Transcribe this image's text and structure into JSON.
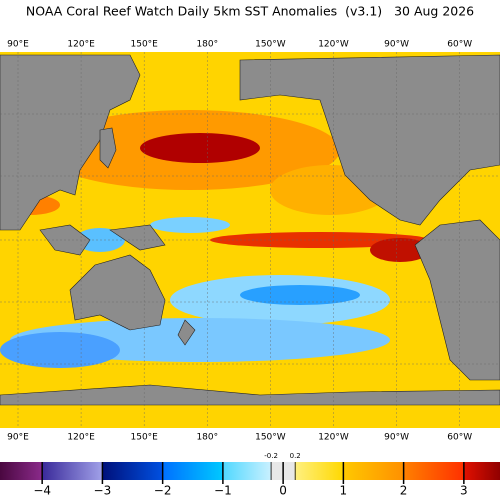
{
  "header": {
    "title": "NOAA Coral Reef Watch Daily 5km SST Anomalies  (v3.1)   30 Aug 2026"
  },
  "map": {
    "lon_labels": [
      "90°E",
      "120°E",
      "150°E",
      "180°",
      "150°W",
      "120°W",
      "90°W",
      "60°W"
    ]
  },
  "colorbar": {
    "vlim": [
      -4.7,
      3.6
    ],
    "ticks": [
      {
        "value": -4,
        "label": "−4"
      },
      {
        "value": -3,
        "label": "−3"
      },
      {
        "value": -2,
        "label": "−2"
      },
      {
        "value": -1,
        "label": "−1"
      },
      0,
      1,
      2,
      3
    ],
    "minor_ticks": [
      -0.2,
      0.2
    ]
  }
}
